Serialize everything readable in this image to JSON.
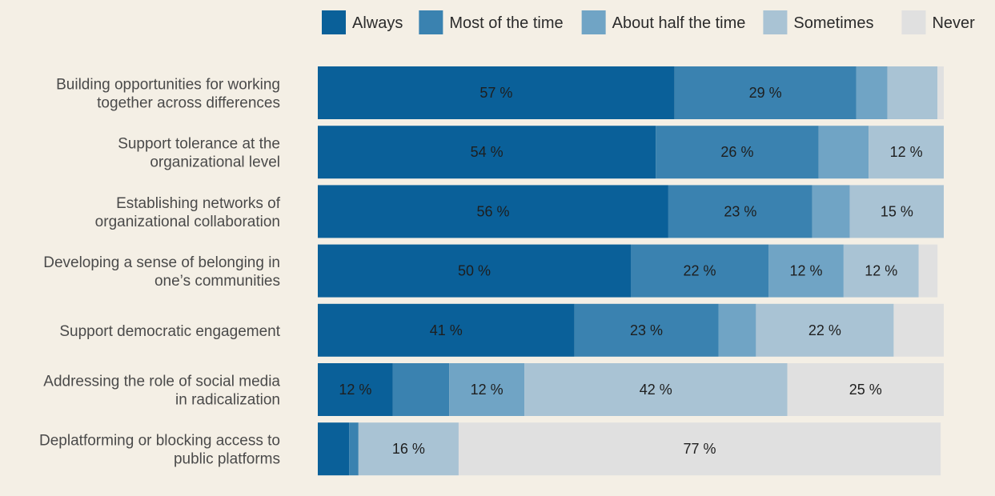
{
  "chart_data": {
    "type": "bar",
    "orientation": "horizontal",
    "stacked": true,
    "normalized_percent": true,
    "xlim": [
      0,
      100
    ],
    "grid": false,
    "legend_position": "top",
    "categories": [
      [
        "Building opportunities for working",
        "together across differences"
      ],
      [
        "Support tolerance at the",
        "organizational level"
      ],
      [
        "Establishing networks of",
        "organizational collaboration"
      ],
      [
        "Developing a sense of belonging in",
        "one’s communities"
      ],
      [
        "Support democratic engagement"
      ],
      [
        "Addressing the role of social media",
        "in radicalization"
      ],
      [
        "Deplatforming or blocking access to",
        "public platforms"
      ]
    ],
    "series": [
      {
        "name": "Always",
        "color": "#0a6099",
        "values": [
          57,
          54,
          56,
          50,
          41,
          12,
          5
        ],
        "labels": [
          "57 %",
          "54 %",
          "56 %",
          "50 %",
          "41 %",
          "12 %",
          ""
        ]
      },
      {
        "name": "Most of the time",
        "color": "#3a82b0",
        "values": [
          29,
          26,
          23,
          22,
          23,
          9,
          1.5
        ],
        "labels": [
          "29 %",
          "26 %",
          "23 %",
          "22 %",
          "23 %",
          "",
          ""
        ]
      },
      {
        "name": "About half the time",
        "color": "#70a4c5",
        "values": [
          5,
          8,
          6,
          12,
          6,
          12,
          0
        ],
        "labels": [
          "",
          "",
          "",
          "12 %",
          "",
          "12 %",
          ""
        ]
      },
      {
        "name": "Sometimes",
        "color": "#a9c3d4",
        "values": [
          8,
          12,
          15,
          12,
          22,
          42,
          16
        ],
        "labels": [
          "",
          "12 %",
          "15 %",
          "12 %",
          "22 %",
          "42 %",
          "16 %"
        ]
      },
      {
        "name": "Never",
        "color": "#e0e0e0",
        "values": [
          1,
          0,
          0,
          3,
          8,
          25,
          77
        ],
        "labels": [
          "",
          "",
          "",
          "",
          "",
          "25 %",
          "77 %"
        ]
      }
    ]
  }
}
